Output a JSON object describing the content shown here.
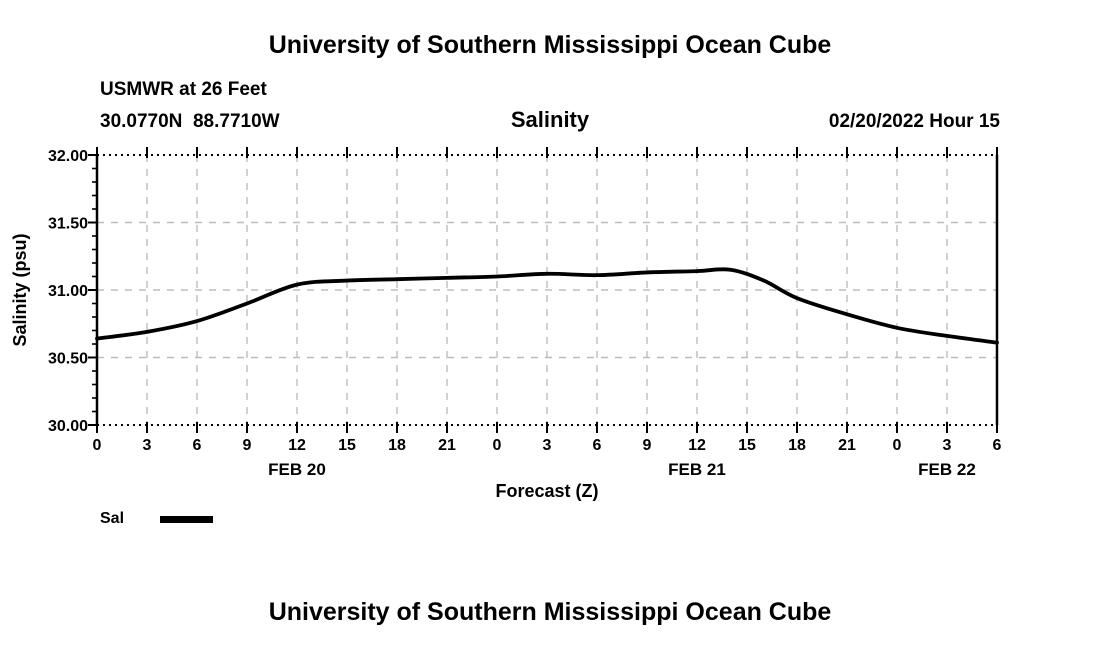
{
  "header": {
    "main_title": "University of Southern Mississippi Ocean Cube",
    "station_label": "USMWR at 26 Feet",
    "coordinates_label": "30.0770N  88.7710W",
    "chart_title": "Salinity",
    "datetime_label": "02/20/2022 Hour 15"
  },
  "footer": {
    "main_title": "University of Southern Mississippi Ocean Cube"
  },
  "colors": {
    "line": "#000000",
    "grid": "#bdbdbd",
    "frame": "#000000",
    "text": "#000000",
    "background": "#ffffff"
  },
  "chart_data": {
    "type": "line",
    "title": "Salinity",
    "xlabel": "Forecast (Z)",
    "ylabel": "Salinity (psu)",
    "xlim": [
      0,
      54
    ],
    "ylim": [
      30.0,
      32.0
    ],
    "grid": true,
    "legend_position": "bottom-left",
    "yticks": [
      {
        "value": 30.0,
        "label": "30.00"
      },
      {
        "value": 30.5,
        "label": "30.50"
      },
      {
        "value": 31.0,
        "label": "31.00"
      },
      {
        "value": 31.5,
        "label": "31.50"
      },
      {
        "value": 32.0,
        "label": "32.00"
      }
    ],
    "y_minor_tick_step": 0.1,
    "xticks": [
      {
        "hour": 0,
        "label": "0"
      },
      {
        "hour": 3,
        "label": "3"
      },
      {
        "hour": 6,
        "label": "6"
      },
      {
        "hour": 9,
        "label": "9"
      },
      {
        "hour": 12,
        "label": "12"
      },
      {
        "hour": 15,
        "label": "15"
      },
      {
        "hour": 18,
        "label": "18"
      },
      {
        "hour": 21,
        "label": "21"
      },
      {
        "hour": 24,
        "label": "0"
      },
      {
        "hour": 27,
        "label": "3"
      },
      {
        "hour": 30,
        "label": "6"
      },
      {
        "hour": 33,
        "label": "9"
      },
      {
        "hour": 36,
        "label": "12"
      },
      {
        "hour": 39,
        "label": "15"
      },
      {
        "hour": 42,
        "label": "18"
      },
      {
        "hour": 45,
        "label": "21"
      },
      {
        "hour": 48,
        "label": "0"
      },
      {
        "hour": 51,
        "label": "3"
      },
      {
        "hour": 54,
        "label": "6"
      }
    ],
    "day_labels": [
      {
        "hour": 12,
        "label": "FEB 20"
      },
      {
        "hour": 36,
        "label": "FEB 21"
      },
      {
        "hour": 51,
        "label": "FEB 22"
      }
    ],
    "legend": [
      {
        "label": "Sal",
        "color": "#000000"
      }
    ],
    "series": [
      {
        "name": "Sal",
        "color": "#000000",
        "x": [
          0,
          3,
          6,
          9,
          12,
          15,
          18,
          21,
          24,
          27,
          30,
          33,
          36,
          38,
          40,
          42,
          45,
          48,
          51,
          54
        ],
        "values": [
          30.64,
          30.69,
          30.77,
          30.9,
          31.04,
          31.07,
          31.08,
          31.09,
          31.1,
          31.12,
          31.11,
          31.13,
          31.14,
          31.15,
          31.07,
          30.94,
          30.82,
          30.72,
          30.66,
          30.61
        ]
      }
    ]
  }
}
